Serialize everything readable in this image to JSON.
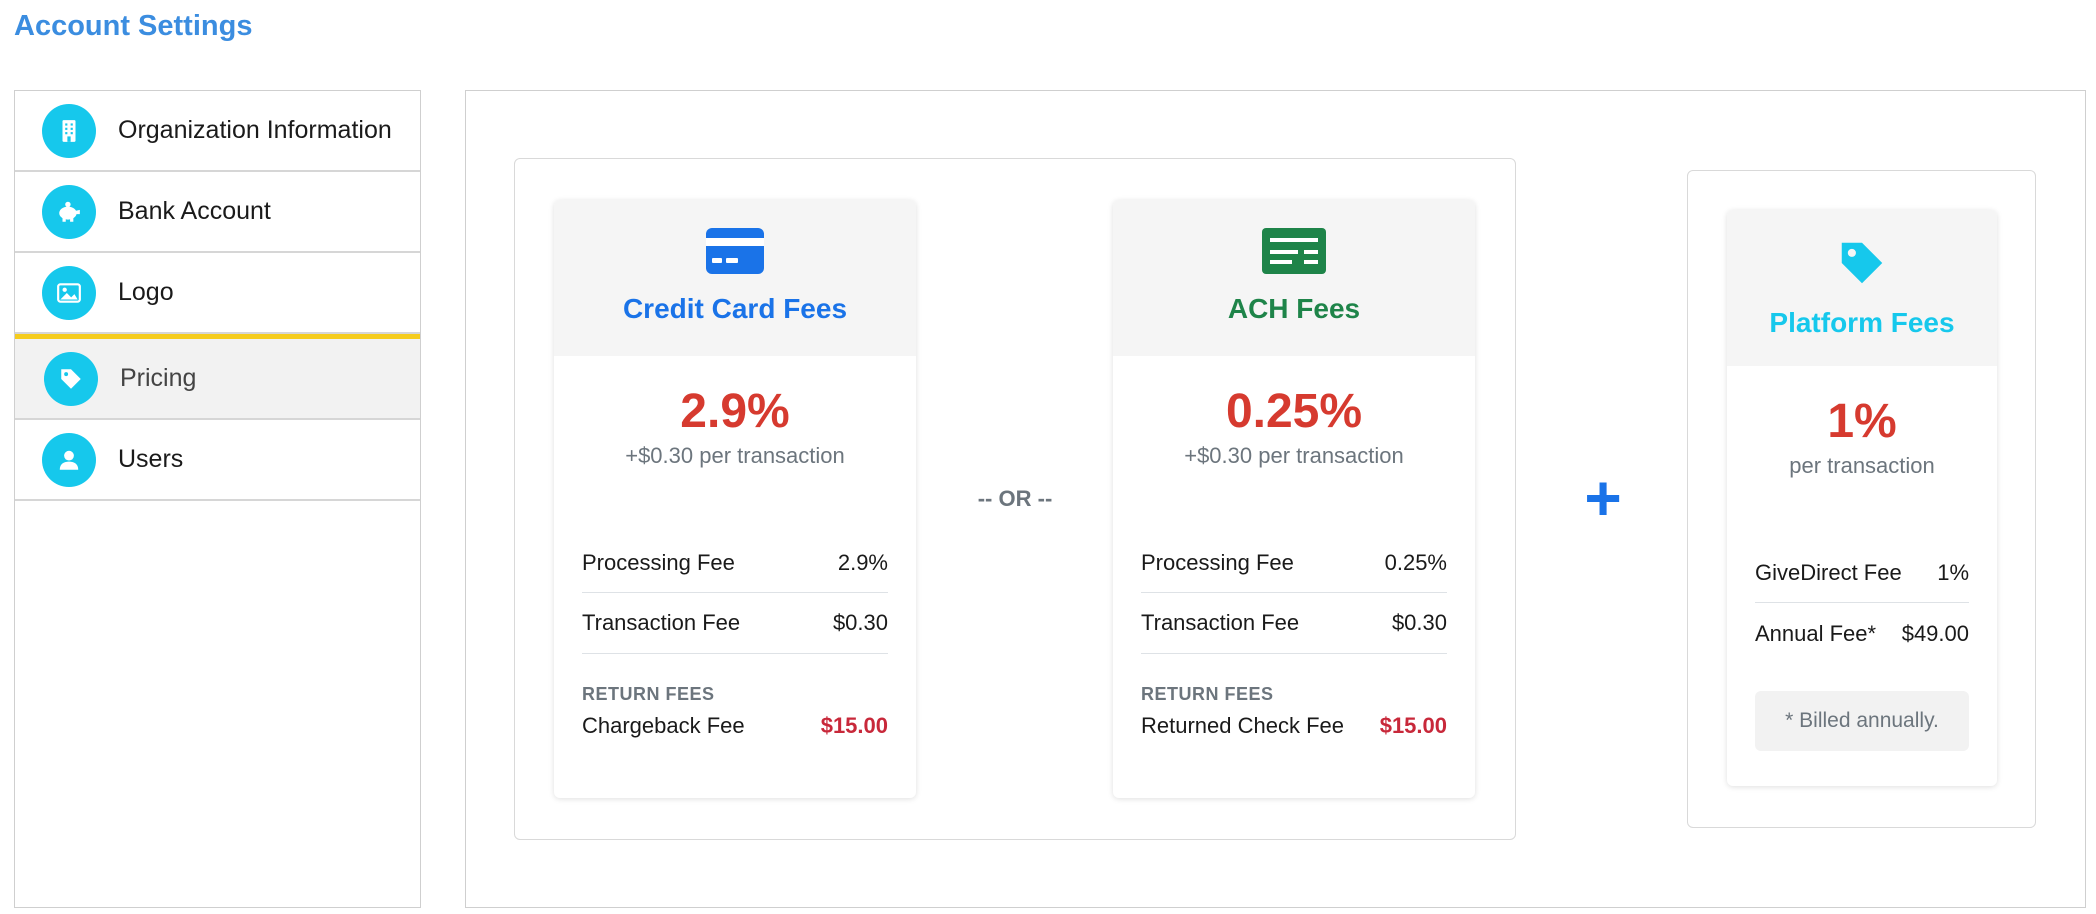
{
  "header": {
    "title": "Account Settings"
  },
  "sidebar": {
    "items": [
      {
        "label": "Organization Information",
        "icon": "building-icon"
      },
      {
        "label": "Bank Account",
        "icon": "piggy-bank-icon"
      },
      {
        "label": "Logo",
        "icon": "image-icon"
      },
      {
        "label": "Pricing",
        "icon": "tag-icon",
        "active": true
      },
      {
        "label": "Users",
        "icon": "user-icon"
      }
    ]
  },
  "pricing": {
    "credit_card": {
      "title": "Credit Card Fees",
      "icon": "credit-card-icon",
      "color": "#1a73e8",
      "rate": "2.9%",
      "rate_sub": "+$0.30 per transaction",
      "rows": [
        {
          "label": "Processing Fee",
          "value": "2.9%"
        },
        {
          "label": "Transaction Fee",
          "value": "$0.30"
        }
      ],
      "return_label": "RETURN FEES",
      "return_row": {
        "label": "Chargeback Fee",
        "value": "$15.00"
      }
    },
    "or_label": "-- OR --",
    "ach": {
      "title": "ACH Fees",
      "icon": "check-money-icon",
      "color": "#1e8449",
      "rate": "0.25%",
      "rate_sub": "+$0.30 per transaction",
      "rows": [
        {
          "label": "Processing Fee",
          "value": "0.25%"
        },
        {
          "label": "Transaction Fee",
          "value": "$0.30"
        }
      ],
      "return_label": "RETURN FEES",
      "return_row": {
        "label": "Returned Check Fee",
        "value": "$15.00"
      }
    },
    "plus_label": "+",
    "platform": {
      "title": "Platform Fees",
      "icon": "tag-icon",
      "color": "#16c8ec",
      "rate": "1%",
      "rate_sub": "per transaction",
      "rows": [
        {
          "label": "GiveDirect Fee",
          "value": "1%"
        },
        {
          "label": "Annual Fee*",
          "value": "$49.00"
        }
      ],
      "note": "* Billed annually."
    }
  },
  "colors": {
    "accent": "#3b8de0",
    "nav_icon_bg": "#16c8ec",
    "active_marker": "#f5cc1d",
    "rate_red": "#d63a2f"
  }
}
